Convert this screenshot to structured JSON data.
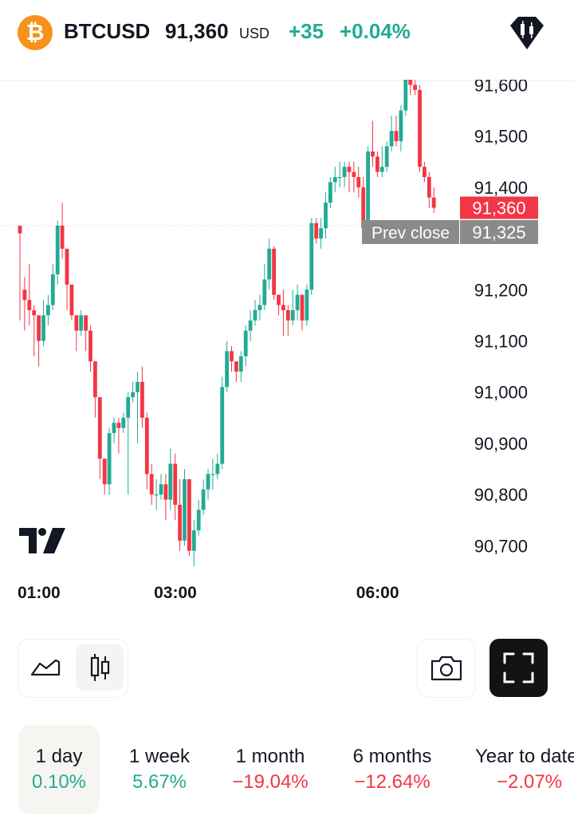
{
  "header": {
    "coin_glyph": "₿",
    "symbol": "BTCUSD",
    "price": "91,360",
    "currency": "USD",
    "change": "+35",
    "change_pct": "+0.04%",
    "gem_icon": "candlestick-gem-icon"
  },
  "chart_data": {
    "type": "candlestick",
    "y_ticks": [
      "91,600",
      "91,500",
      "91,400",
      "91,200",
      "91,100",
      "91,000",
      "90,900",
      "90,800",
      "90,700"
    ],
    "ylim": [
      90660,
      91610
    ],
    "x_ticks": [
      "01:00",
      "03:00",
      "06:00"
    ],
    "x_tick_index": [
      0,
      29,
      72
    ],
    "last_price_label": "91,360",
    "prev_close": {
      "label": "Prev close",
      "value": "91,325",
      "numeric": 91325
    },
    "candles": [
      [
        91325,
        91310,
        91325,
        91140
      ],
      [
        91200,
        91180,
        91225,
        91120
      ],
      [
        91180,
        91160,
        91250,
        91130
      ],
      [
        91160,
        91150,
        91170,
        91070
      ],
      [
        91150,
        91100,
        91140,
        91050
      ],
      [
        91100,
        91150,
        91180,
        91090
      ],
      [
        91150,
        91170,
        91190,
        91130
      ],
      [
        91170,
        91230,
        91250,
        91160
      ],
      [
        91230,
        91325,
        91335,
        91210
      ],
      [
        91325,
        91280,
        91370,
        91260
      ],
      [
        91280,
        91210,
        91260,
        91160
      ],
      [
        91210,
        91150,
        91200,
        91140
      ],
      [
        91150,
        91120,
        91140,
        91080
      ],
      [
        91120,
        91150,
        91160,
        91110
      ],
      [
        91150,
        91120,
        91140,
        91080
      ],
      [
        91120,
        91060,
        91130,
        91040
      ],
      [
        91060,
        90990,
        91020,
        90950
      ],
      [
        90990,
        90870,
        90990,
        90830
      ],
      [
        90870,
        90820,
        90850,
        90800
      ],
      [
        90820,
        90920,
        90930,
        90800
      ],
      [
        90920,
        90940,
        90950,
        90900
      ],
      [
        90940,
        90930,
        90950,
        90880
      ],
      [
        90930,
        90950,
        90960,
        90920
      ],
      [
        90950,
        90990,
        91000,
        90800
      ],
      [
        90990,
        91000,
        91020,
        90980
      ],
      [
        91000,
        91020,
        91040,
        90900
      ],
      [
        91020,
        90950,
        91050,
        90930
      ],
      [
        90950,
        90840,
        90960,
        90810
      ],
      [
        90840,
        90800,
        90860,
        90780
      ],
      [
        90800,
        90800,
        90830,
        90770
      ],
      [
        90800,
        90820,
        90840,
        90790
      ],
      [
        90820,
        90790,
        90840,
        90750
      ],
      [
        90790,
        90860,
        90890,
        90770
      ],
      [
        90860,
        90780,
        90880,
        90750
      ],
      [
        90780,
        90710,
        90830,
        90690
      ],
      [
        90710,
        90830,
        90850,
        90700
      ],
      [
        90830,
        90690,
        90830,
        90680
      ],
      [
        90690,
        90730,
        90750,
        90660
      ],
      [
        90730,
        90770,
        90790,
        90720
      ],
      [
        90770,
        90810,
        90830,
        90760
      ],
      [
        90810,
        90840,
        90850,
        90790
      ],
      [
        90840,
        90840,
        90870,
        90810
      ],
      [
        90840,
        90860,
        90880,
        90830
      ],
      [
        90860,
        91010,
        91030,
        90850
      ],
      [
        91010,
        91080,
        91100,
        91000
      ],
      [
        91080,
        91060,
        91090,
        91040
      ],
      [
        91060,
        91040,
        91060,
        91020
      ],
      [
        91040,
        91070,
        91080,
        91020
      ],
      [
        91070,
        91120,
        91130,
        91050
      ],
      [
        91120,
        91140,
        91160,
        91100
      ],
      [
        91140,
        91160,
        91180,
        91130
      ],
      [
        91160,
        91170,
        91190,
        91140
      ],
      [
        91170,
        91220,
        91250,
        91160
      ],
      [
        91220,
        91280,
        91300,
        91200
      ],
      [
        91280,
        91190,
        91285,
        91180
      ],
      [
        91190,
        91170,
        91190,
        91150
      ],
      [
        91170,
        91160,
        91200,
        91110
      ],
      [
        91160,
        91140,
        91170,
        91110
      ],
      [
        91140,
        91160,
        91200,
        91130
      ],
      [
        91160,
        91190,
        91210,
        91140
      ],
      [
        91190,
        91140,
        91190,
        91120
      ],
      [
        91140,
        91200,
        91210,
        91130
      ],
      [
        91200,
        91330,
        91340,
        91190
      ],
      [
        91330,
        91300,
        91340,
        91290
      ],
      [
        91300,
        91320,
        91340,
        91280
      ],
      [
        91320,
        91370,
        91390,
        91300
      ],
      [
        91370,
        91410,
        91420,
        91360
      ],
      [
        91410,
        91420,
        91440,
        91390
      ],
      [
        91420,
        91420,
        91450,
        91400
      ],
      [
        91420,
        91440,
        91450,
        91400
      ],
      [
        91440,
        91430,
        91450,
        91390
      ],
      [
        91430,
        91420,
        91450,
        91390
      ],
      [
        91420,
        91400,
        91440,
        91380
      ],
      [
        91400,
        91320,
        91420,
        91310
      ],
      [
        91320,
        91470,
        91480,
        91310
      ],
      [
        91470,
        91460,
        91530,
        91440
      ],
      [
        91460,
        91430,
        91470,
        91420
      ],
      [
        91430,
        91440,
        91480,
        91420
      ],
      [
        91440,
        91480,
        91490,
        91430
      ],
      [
        91480,
        91510,
        91540,
        91470
      ],
      [
        91510,
        91490,
        91540,
        91480
      ],
      [
        91490,
        91550,
        91560,
        91470
      ],
      [
        91550,
        91610,
        91615,
        91540
      ],
      [
        91610,
        91600,
        91620,
        91580
      ],
      [
        91600,
        91590,
        91610,
        91580
      ],
      [
        91590,
        91440,
        91600,
        91430
      ],
      [
        91440,
        91420,
        91450,
        91410
      ],
      [
        91420,
        91380,
        91430,
        91360
      ],
      [
        91380,
        91360,
        91400,
        91350
      ]
    ]
  },
  "controls": {
    "line_icon": "line-chart-icon",
    "candle_icon": "candlestick-icon",
    "camera_icon": "camera-icon",
    "fullscreen_icon": "fullscreen-icon"
  },
  "ranges": [
    {
      "label": "1 day",
      "value": "0.10%",
      "dir": "up"
    },
    {
      "label": "1 week",
      "value": "5.67%",
      "dir": "up"
    },
    {
      "label": "1 month",
      "value": "−19.04%",
      "dir": "down"
    },
    {
      "label": "6 months",
      "value": "−12.64%",
      "dir": "down"
    },
    {
      "label": "Year to date",
      "value": "−2.07%",
      "dir": "down"
    }
  ],
  "colors": {
    "up": "#22ab94",
    "down": "#f23645",
    "last_price_bg": "#f23645",
    "prev_close_bg": "#8a8a8a",
    "coin": "#f7931a"
  }
}
